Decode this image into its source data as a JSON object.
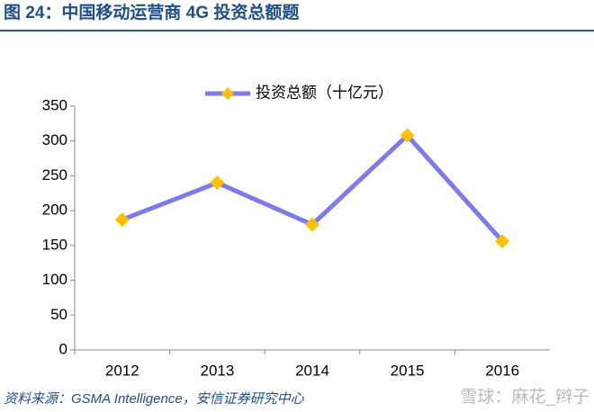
{
  "chart_data": {
    "type": "line",
    "title": "图 24：中国移动运营商 4G 投资总额题",
    "source": "资料来源：GSMA Intelligence，安信证券研究中心",
    "watermark": "雪球：麻花_辫子",
    "categories": [
      "2012",
      "2013",
      "2014",
      "2015",
      "2016"
    ],
    "series": [
      {
        "name": "投资总额（十亿元）",
        "color": "#7b7bef",
        "marker_color": "#ffc000",
        "values": [
          187,
          240,
          180,
          308,
          156
        ]
      }
    ],
    "ylim": [
      0,
      350
    ],
    "yticks": [
      0,
      50,
      100,
      150,
      200,
      250,
      300,
      350
    ],
    "grid": false
  }
}
